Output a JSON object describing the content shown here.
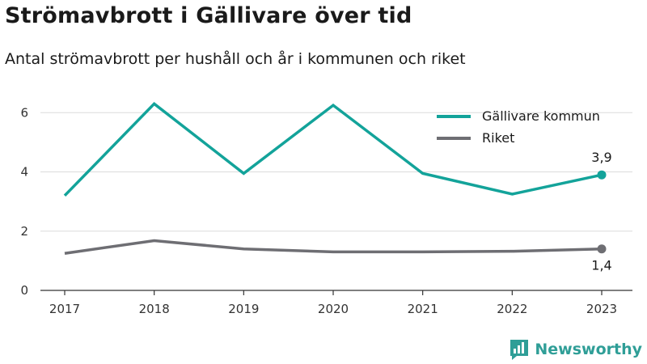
{
  "header": {
    "title": "Strömavbrott i Gällivare över tid",
    "subtitle": "Antal strömavbrott per hushåll och år i kommunen och riket"
  },
  "brand": {
    "name": "Newsworthy",
    "icon": "newsworthy-logo-icon",
    "color": "#2f9e97"
  },
  "chart_data": {
    "type": "line",
    "x": [
      "2017",
      "2018",
      "2019",
      "2020",
      "2021",
      "2022",
      "2023"
    ],
    "ylim": [
      0,
      6.8
    ],
    "yticks": [
      0,
      2,
      4,
      6
    ],
    "grid": true,
    "legend_position": "top-right",
    "series": [
      {
        "name": "Gällivare kommun",
        "color": "#13a39a",
        "values": [
          3.2,
          6.3,
          3.95,
          6.25,
          3.95,
          3.25,
          3.9
        ],
        "end_label": "3,9"
      },
      {
        "name": "Riket",
        "color": "#6e6e73",
        "values": [
          1.25,
          1.68,
          1.4,
          1.3,
          1.3,
          1.32,
          1.4
        ],
        "end_label": "1,4"
      }
    ]
  }
}
